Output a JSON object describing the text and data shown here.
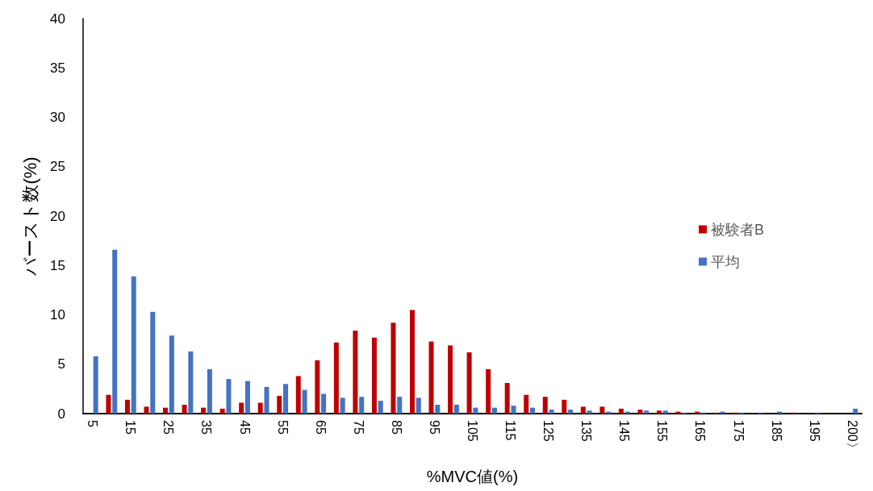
{
  "chart_data": {
    "type": "bar",
    "xlabel": "%MVC値(%)",
    "ylabel": "バースト数(%)",
    "categories": [
      "5",
      null,
      "15",
      null,
      "25",
      null,
      "35",
      null,
      "45",
      null,
      "55",
      null,
      "65",
      null,
      "75",
      null,
      "85",
      null,
      "95",
      null,
      "105",
      null,
      "115",
      null,
      "125",
      null,
      "135",
      null,
      "145",
      null,
      "155",
      null,
      "165",
      null,
      "175",
      null,
      "185",
      null,
      "195",
      null,
      "200〉"
    ],
    "series": [
      {
        "name": "被験者B",
        "color": "#c00000",
        "values": [
          0,
          1.9,
          1.4,
          0.7,
          0.6,
          0.9,
          0.6,
          0.5,
          1.1,
          1.1,
          1.8,
          3.8,
          5.4,
          7.2,
          8.4,
          7.7,
          9.2,
          10.5,
          7.3,
          6.9,
          6.2,
          4.5,
          3.1,
          1.9,
          1.7,
          1.4,
          0.7,
          0.7,
          0.5,
          0.4,
          0.3,
          0.2,
          0.2,
          0.1,
          0.1,
          0,
          0,
          0.1,
          0,
          0,
          0
        ]
      },
      {
        "name": "平均",
        "color": "#4472c4",
        "values": [
          5.8,
          16.6,
          13.9,
          10.3,
          7.9,
          6.3,
          4.5,
          3.5,
          3.3,
          2.7,
          3.0,
          2.4,
          2.0,
          1.6,
          1.7,
          1.3,
          1.7,
          1.6,
          0.9,
          0.9,
          0.6,
          0.6,
          0.8,
          0.6,
          0.4,
          0.4,
          0.3,
          0.2,
          0.2,
          0.3,
          0.3,
          0.1,
          0.1,
          0.2,
          0.1,
          0.1,
          0.2,
          0,
          0.1,
          0,
          0.5
        ]
      }
    ],
    "ylim": [
      0,
      40
    ],
    "yticks": [
      0,
      5,
      10,
      15,
      20,
      25,
      30,
      35,
      40
    ],
    "grid": false,
    "legend": "right"
  }
}
